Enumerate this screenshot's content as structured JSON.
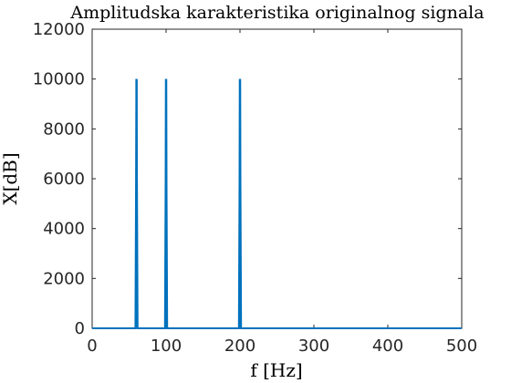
{
  "chart_data": {
    "type": "line",
    "title": "Amplitudska karakteristika originalnog signala",
    "xlabel": "f [Hz]",
    "ylabel": "X[dB]",
    "xlim": [
      0,
      500
    ],
    "ylim": [
      0,
      12000
    ],
    "xticks": [
      0,
      100,
      200,
      300,
      400,
      500
    ],
    "yticks": [
      0,
      2000,
      4000,
      6000,
      8000,
      10000,
      12000
    ],
    "grid": false,
    "color": "#0072bd",
    "series": [
      {
        "peaks": [
          {
            "x": 60,
            "y": 10000
          },
          {
            "x": 100,
            "y": 10000
          },
          {
            "x": 200,
            "y": 10000
          }
        ],
        "baseline": 0
      }
    ]
  }
}
